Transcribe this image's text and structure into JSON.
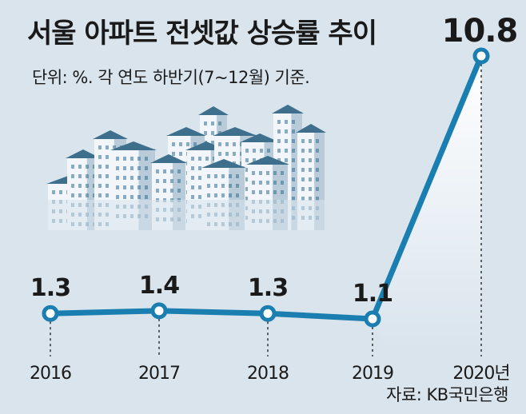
{
  "title": "서울 아파트 전셋값 상승률 추이",
  "subtitle": "단위: %. 각 연도 하반기(7~12월) 기준.",
  "source": "자료: KB국민은행",
  "colors": {
    "background": "#d9e4ed",
    "line": "#1a7fb0",
    "marker_fill": "#ffffff",
    "text": "#1a1a1a",
    "building_light": "#f2f6fa",
    "building_shade": "#b9cad8",
    "roof": "#3e6f8c",
    "window": "#2f6f93"
  },
  "illustration": "apartment-buildings",
  "chart_data": {
    "type": "line",
    "categories": [
      "2016",
      "2017",
      "2018",
      "2019",
      "2020년"
    ],
    "values": [
      1.3,
      1.4,
      1.3,
      1.1,
      10.8
    ],
    "value_labels": [
      "1.3",
      "1.4",
      "1.3",
      "1.1",
      "10.8"
    ],
    "title": "서울 아파트 전셋값 상승률 추이",
    "xlabel": "",
    "ylabel": "",
    "unit": "%",
    "grid": false,
    "legend": "none",
    "axes_visible": false
  }
}
